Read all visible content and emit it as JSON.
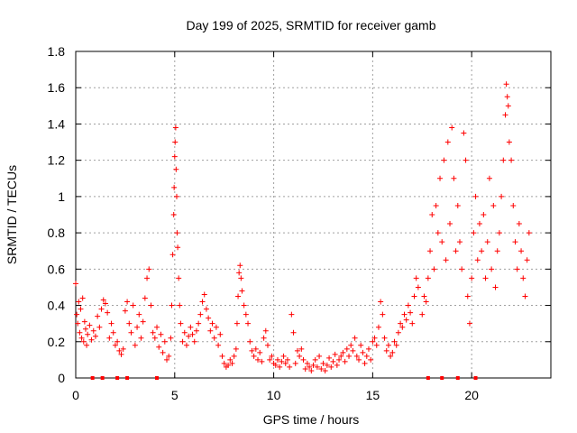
{
  "chart_data": {
    "type": "scatter",
    "title": "Day 199 of 2025, SRMTID for receiver gamb",
    "xlabel": "GPS time / hours",
    "ylabel": "SRMTID / TECUs",
    "xlim": [
      0,
      24
    ],
    "ylim": [
      0,
      1.8
    ],
    "xticks": [
      0,
      5,
      10,
      15,
      20
    ],
    "xtick_labels": [
      "0",
      "5",
      "10",
      "15",
      "20"
    ],
    "yticks": [
      0,
      0.2,
      0.4,
      0.6,
      0.8,
      1,
      1.2,
      1.4,
      1.6,
      1.8
    ],
    "ytick_labels": [
      "0",
      "0.2",
      "0.4",
      "0.6",
      "0.8",
      "1",
      "1.2",
      "1.4",
      "1.6",
      "1.8"
    ],
    "grid": true,
    "marker": "+",
    "color": "#ff0000",
    "series": [
      {
        "name": "SRMTID",
        "points": [
          [
            0.0,
            0.52
          ],
          [
            0.05,
            0.35
          ],
          [
            0.1,
            0.3
          ],
          [
            0.15,
            0.42
          ],
          [
            0.2,
            0.25
          ],
          [
            0.25,
            0.38
          ],
          [
            0.3,
            0.22
          ],
          [
            0.35,
            0.44
          ],
          [
            0.4,
            0.2
          ],
          [
            0.45,
            0.31
          ],
          [
            0.5,
            0.27
          ],
          [
            0.55,
            0.18
          ],
          [
            0.6,
            0.24
          ],
          [
            0.7,
            0.29
          ],
          [
            0.8,
            0.21
          ],
          [
            0.9,
            0.26
          ],
          [
            1.0,
            0.23
          ],
          [
            1.1,
            0.34
          ],
          [
            1.2,
            0.28
          ],
          [
            1.3,
            0.38
          ],
          [
            1.4,
            0.43
          ],
          [
            1.5,
            0.41
          ],
          [
            1.6,
            0.36
          ],
          [
            1.7,
            0.22
          ],
          [
            1.8,
            0.3
          ],
          [
            1.9,
            0.25
          ],
          [
            2.0,
            0.18
          ],
          [
            2.1,
            0.2
          ],
          [
            2.2,
            0.15
          ],
          [
            2.3,
            0.13
          ],
          [
            2.4,
            0.16
          ],
          [
            2.5,
            0.37
          ],
          [
            2.6,
            0.42
          ],
          [
            2.7,
            0.3
          ],
          [
            2.8,
            0.25
          ],
          [
            2.9,
            0.4
          ],
          [
            3.0,
            0.18
          ],
          [
            3.1,
            0.28
          ],
          [
            3.2,
            0.35
          ],
          [
            3.3,
            0.22
          ],
          [
            3.4,
            0.31
          ],
          [
            3.5,
            0.44
          ],
          [
            3.6,
            0.55
          ],
          [
            3.7,
            0.6
          ],
          [
            3.8,
            0.4
          ],
          [
            3.9,
            0.25
          ],
          [
            4.0,
            0.22
          ],
          [
            4.1,
            0.28
          ],
          [
            4.2,
            0.17
          ],
          [
            4.3,
            0.24
          ],
          [
            4.4,
            0.14
          ],
          [
            4.5,
            0.2
          ],
          [
            4.6,
            0.1
          ],
          [
            4.7,
            0.12
          ],
          [
            4.8,
            0.22
          ],
          [
            4.85,
            0.4
          ],
          [
            4.9,
            0.68
          ],
          [
            4.95,
            0.9
          ],
          [
            4.97,
            1.05
          ],
          [
            5.0,
            1.22
          ],
          [
            5.02,
            1.3
          ],
          [
            5.05,
            1.38
          ],
          [
            5.07,
            1.15
          ],
          [
            5.1,
            1.0
          ],
          [
            5.12,
            0.8
          ],
          [
            5.15,
            0.72
          ],
          [
            5.2,
            0.55
          ],
          [
            5.25,
            0.4
          ],
          [
            5.3,
            0.3
          ],
          [
            5.4,
            0.2
          ],
          [
            5.5,
            0.25
          ],
          [
            5.6,
            0.18
          ],
          [
            5.7,
            0.23
          ],
          [
            5.8,
            0.28
          ],
          [
            5.9,
            0.24
          ],
          [
            6.0,
            0.2
          ],
          [
            6.1,
            0.26
          ],
          [
            6.2,
            0.3
          ],
          [
            6.3,
            0.35
          ],
          [
            6.4,
            0.42
          ],
          [
            6.5,
            0.46
          ],
          [
            6.6,
            0.38
          ],
          [
            6.7,
            0.33
          ],
          [
            6.8,
            0.26
          ],
          [
            6.9,
            0.3
          ],
          [
            7.0,
            0.22
          ],
          [
            7.1,
            0.28
          ],
          [
            7.2,
            0.18
          ],
          [
            7.3,
            0.24
          ],
          [
            7.4,
            0.12
          ],
          [
            7.5,
            0.08
          ],
          [
            7.6,
            0.06
          ],
          [
            7.7,
            0.07
          ],
          [
            7.8,
            0.1
          ],
          [
            7.9,
            0.08
          ],
          [
            8.0,
            0.12
          ],
          [
            8.1,
            0.16
          ],
          [
            8.15,
            0.3
          ],
          [
            8.2,
            0.45
          ],
          [
            8.25,
            0.58
          ],
          [
            8.3,
            0.62
          ],
          [
            8.35,
            0.55
          ],
          [
            8.4,
            0.48
          ],
          [
            8.5,
            0.4
          ],
          [
            8.6,
            0.35
          ],
          [
            8.7,
            0.3
          ],
          [
            8.8,
            0.2
          ],
          [
            8.9,
            0.15
          ],
          [
            9.0,
            0.12
          ],
          [
            9.1,
            0.16
          ],
          [
            9.2,
            0.1
          ],
          [
            9.3,
            0.14
          ],
          [
            9.4,
            0.09
          ],
          [
            9.5,
            0.22
          ],
          [
            9.6,
            0.26
          ],
          [
            9.7,
            0.18
          ],
          [
            9.8,
            0.1
          ],
          [
            9.9,
            0.12
          ],
          [
            10.0,
            0.08
          ],
          [
            10.1,
            0.07
          ],
          [
            10.2,
            0.1
          ],
          [
            10.3,
            0.06
          ],
          [
            10.4,
            0.09
          ],
          [
            10.5,
            0.12
          ],
          [
            10.6,
            0.08
          ],
          [
            10.7,
            0.1
          ],
          [
            10.8,
            0.06
          ],
          [
            10.9,
            0.35
          ],
          [
            11.0,
            0.25
          ],
          [
            11.1,
            0.08
          ],
          [
            11.2,
            0.15
          ],
          [
            11.3,
            0.12
          ],
          [
            11.4,
            0.16
          ],
          [
            11.5,
            0.1
          ],
          [
            11.6,
            0.05
          ],
          [
            11.7,
            0.08
          ],
          [
            11.8,
            0.06
          ],
          [
            11.9,
            0.04
          ],
          [
            12.0,
            0.07
          ],
          [
            12.1,
            0.1
          ],
          [
            12.2,
            0.06
          ],
          [
            12.3,
            0.12
          ],
          [
            12.4,
            0.05
          ],
          [
            12.5,
            0.08
          ],
          [
            12.6,
            0.04
          ],
          [
            12.7,
            0.07
          ],
          [
            12.8,
            0.11
          ],
          [
            12.9,
            0.06
          ],
          [
            13.0,
            0.09
          ],
          [
            13.1,
            0.13
          ],
          [
            13.2,
            0.07
          ],
          [
            13.3,
            0.1
          ],
          [
            13.4,
            0.12
          ],
          [
            13.5,
            0.14
          ],
          [
            13.6,
            0.09
          ],
          [
            13.7,
            0.16
          ],
          [
            13.8,
            0.12
          ],
          [
            13.9,
            0.18
          ],
          [
            14.0,
            0.15
          ],
          [
            14.1,
            0.22
          ],
          [
            14.2,
            0.12
          ],
          [
            14.3,
            0.1
          ],
          [
            14.4,
            0.18
          ],
          [
            14.5,
            0.14
          ],
          [
            14.6,
            0.08
          ],
          [
            14.7,
            0.12
          ],
          [
            14.8,
            0.16
          ],
          [
            14.9,
            0.1
          ],
          [
            15.0,
            0.2
          ],
          [
            15.1,
            0.22
          ],
          [
            15.2,
            0.18
          ],
          [
            15.3,
            0.28
          ],
          [
            15.4,
            0.42
          ],
          [
            15.5,
            0.35
          ],
          [
            15.6,
            0.22
          ],
          [
            15.7,
            0.15
          ],
          [
            15.8,
            0.18
          ],
          [
            15.9,
            0.12
          ],
          [
            16.0,
            0.14
          ],
          [
            16.1,
            0.2
          ],
          [
            16.2,
            0.18
          ],
          [
            16.3,
            0.25
          ],
          [
            16.4,
            0.3
          ],
          [
            16.5,
            0.28
          ],
          [
            16.6,
            0.35
          ],
          [
            16.7,
            0.32
          ],
          [
            16.8,
            0.4
          ],
          [
            16.9,
            0.36
          ],
          [
            17.0,
            0.3
          ],
          [
            17.1,
            0.45
          ],
          [
            17.2,
            0.55
          ],
          [
            17.3,
            0.5
          ],
          [
            17.5,
            0.35
          ],
          [
            17.6,
            0.45
          ],
          [
            17.7,
            0.42
          ],
          [
            17.8,
            0.55
          ],
          [
            17.9,
            0.7
          ],
          [
            18.0,
            0.9
          ],
          [
            18.1,
            0.6
          ],
          [
            18.2,
            0.95
          ],
          [
            18.3,
            0.8
          ],
          [
            18.4,
            1.1
          ],
          [
            18.5,
            0.75
          ],
          [
            18.6,
            1.2
          ],
          [
            18.7,
            0.65
          ],
          [
            18.8,
            1.3
          ],
          [
            18.9,
            0.85
          ],
          [
            19.0,
            1.38
          ],
          [
            19.1,
            1.1
          ],
          [
            19.2,
            0.7
          ],
          [
            19.3,
            0.95
          ],
          [
            19.4,
            0.75
          ],
          [
            19.5,
            0.6
          ],
          [
            19.6,
            1.35
          ],
          [
            19.7,
            1.2
          ],
          [
            19.8,
            0.45
          ],
          [
            19.9,
            0.3
          ],
          [
            20.0,
            0.55
          ],
          [
            20.1,
            0.8
          ],
          [
            20.2,
            1.0
          ],
          [
            20.3,
            0.65
          ],
          [
            20.4,
            0.85
          ],
          [
            20.5,
            0.7
          ],
          [
            20.6,
            0.9
          ],
          [
            20.7,
            0.55
          ],
          [
            20.8,
            0.75
          ],
          [
            20.9,
            1.1
          ],
          [
            21.0,
            0.6
          ],
          [
            21.1,
            0.95
          ],
          [
            21.2,
            0.5
          ],
          [
            21.3,
            0.7
          ],
          [
            21.4,
            0.8
          ],
          [
            21.5,
            1.0
          ],
          [
            21.6,
            1.2
          ],
          [
            21.7,
            1.45
          ],
          [
            21.75,
            1.62
          ],
          [
            21.8,
            1.55
          ],
          [
            21.85,
            1.5
          ],
          [
            21.9,
            1.3
          ],
          [
            22.0,
            1.2
          ],
          [
            22.1,
            0.95
          ],
          [
            22.2,
            0.75
          ],
          [
            22.3,
            0.6
          ],
          [
            22.4,
            0.85
          ],
          [
            22.5,
            0.7
          ],
          [
            22.6,
            0.55
          ],
          [
            22.7,
            0.45
          ],
          [
            22.8,
            0.65
          ],
          [
            22.9,
            0.8
          ]
        ]
      }
    ],
    "zero_markers": [
      0.85,
      1.35,
      2.1,
      2.6,
      4.1,
      17.8,
      18.5,
      19.3,
      20.2
    ]
  }
}
